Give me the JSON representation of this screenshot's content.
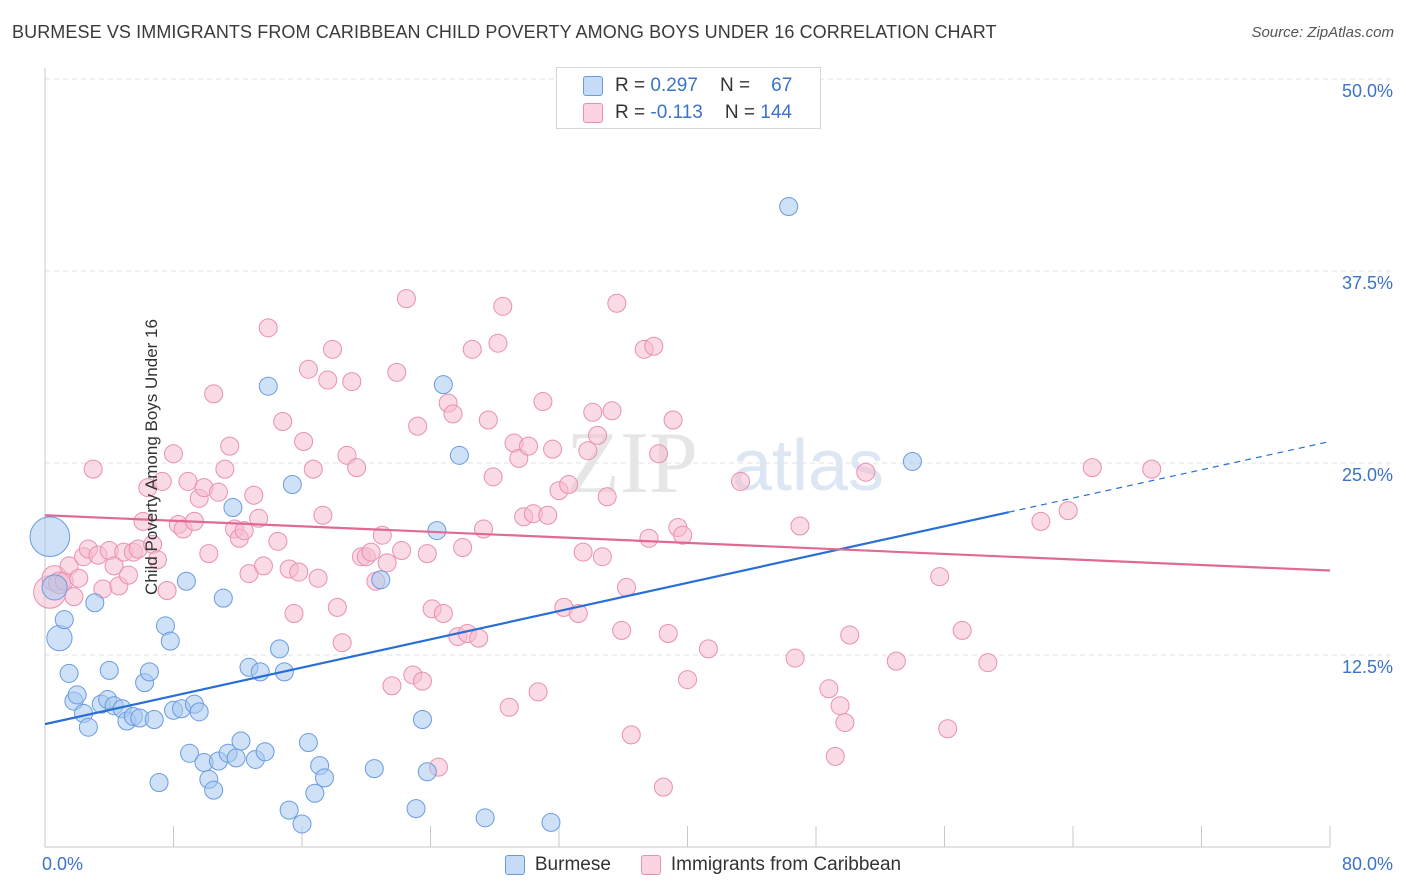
{
  "title": "BURMESE VS IMMIGRANTS FROM CARIBBEAN CHILD POVERTY AMONG BOYS UNDER 16 CORRELATION CHART",
  "source": "Source: ZipAtlas.com",
  "watermark": {
    "zip": "ZIP",
    "atlas": "atlas"
  },
  "legend": {
    "rows": [
      {
        "r_label": "R =",
        "r_value": "0.297",
        "n_label": "N =",
        "n_value": "67"
      },
      {
        "r_label": "R =",
        "r_value": "-0.113",
        "n_label": "N =",
        "n_value": "144"
      }
    ]
  },
  "colors": {
    "burmese_fill": "#a8c8f0",
    "burmese_stroke": "#6a9be0",
    "burmese_line": "#2a6fd4",
    "caribbean_fill": "#f6bcd0",
    "caribbean_stroke": "#e890b0",
    "caribbean_line": "#e06a96",
    "grid": "#e2e2e2",
    "tick_label": "#3b73c6"
  },
  "chart_data": {
    "type": "scatter",
    "title": "BURMESE VS IMMIGRANTS FROM CARIBBEAN CHILD POVERTY AMONG BOYS UNDER 16 CORRELATION CHART",
    "xlabel": "",
    "ylabel": "Child Poverty Among Boys Under 16",
    "xlim": [
      0,
      80
    ],
    "ylim": [
      0,
      50
    ],
    "x_tick_labels": [
      "0.0%",
      "80.0%"
    ],
    "y_ticks": [
      12.5,
      25.0,
      37.5,
      50.0
    ],
    "y_tick_labels": [
      "12.5%",
      "25.0%",
      "37.5%",
      "50.0%"
    ],
    "grid": "horizontal dashed",
    "legend_position": "bottom",
    "series": [
      {
        "name": "Burmese",
        "R": 0.297,
        "N": 67,
        "trend": {
          "x": [
            0,
            60
          ],
          "y": [
            8.0,
            21.8
          ],
          "dashed_to": [
            80,
            26.4
          ]
        },
        "points": [
          [
            0.3,
            20.2,
            2.2
          ],
          [
            0.6,
            16.9,
            1.4
          ],
          [
            0.9,
            13.6,
            1.4
          ],
          [
            1.2,
            14.8,
            1.0
          ],
          [
            1.5,
            11.3,
            1.0
          ],
          [
            1.8,
            9.5,
            1.0
          ],
          [
            2.0,
            9.9,
            1.0
          ],
          [
            2.4,
            8.7,
            1.0
          ],
          [
            2.7,
            7.8,
            1.0
          ],
          [
            3.1,
            15.9,
            1.0
          ],
          [
            3.5,
            9.3,
            1.0
          ],
          [
            3.9,
            9.6,
            1.0
          ],
          [
            4.0,
            11.5,
            1.0
          ],
          [
            4.3,
            9.2,
            1.0
          ],
          [
            4.8,
            9.0,
            1.0
          ],
          [
            5.1,
            8.2,
            1.0
          ],
          [
            5.5,
            8.5,
            1.0
          ],
          [
            5.9,
            8.4,
            1.0
          ],
          [
            6.2,
            10.7,
            1.0
          ],
          [
            6.5,
            11.4,
            1.0
          ],
          [
            6.8,
            8.3,
            1.0
          ],
          [
            7.1,
            4.2,
            1.0
          ],
          [
            7.5,
            14.4,
            1.0
          ],
          [
            7.8,
            13.4,
            1.0
          ],
          [
            8.0,
            8.9,
            1.0
          ],
          [
            8.5,
            9.0,
            1.0
          ],
          [
            8.8,
            17.3,
            1.0
          ],
          [
            9.0,
            6.1,
            1.0
          ],
          [
            9.3,
            9.3,
            1.0
          ],
          [
            9.6,
            8.8,
            1.0
          ],
          [
            9.9,
            5.5,
            1.0
          ],
          [
            10.2,
            4.4,
            1.0
          ],
          [
            10.5,
            3.7,
            1.0
          ],
          [
            10.8,
            5.6,
            1.0
          ],
          [
            11.1,
            16.2,
            1.0
          ],
          [
            11.4,
            6.1,
            1.0
          ],
          [
            11.7,
            22.1,
            1.0
          ],
          [
            11.9,
            5.8,
            1.0
          ],
          [
            12.2,
            6.9,
            1.0
          ],
          [
            12.7,
            11.7,
            1.0
          ],
          [
            13.1,
            5.7,
            1.0
          ],
          [
            13.4,
            11.4,
            1.0
          ],
          [
            13.7,
            6.2,
            1.0
          ],
          [
            13.9,
            30.0,
            1.0
          ],
          [
            14.6,
            12.9,
            1.0
          ],
          [
            14.9,
            11.4,
            1.0
          ],
          [
            15.2,
            2.4,
            1.0
          ],
          [
            15.4,
            23.6,
            1.0
          ],
          [
            16.0,
            1.5,
            1.0
          ],
          [
            16.4,
            6.8,
            1.0
          ],
          [
            16.8,
            3.5,
            1.0
          ],
          [
            17.1,
            5.3,
            1.0
          ],
          [
            17.4,
            4.5,
            1.0
          ],
          [
            20.5,
            5.1,
            1.0
          ],
          [
            20.9,
            17.4,
            1.0
          ],
          [
            23.1,
            2.5,
            1.0
          ],
          [
            23.5,
            8.3,
            1.0
          ],
          [
            23.8,
            4.9,
            1.0
          ],
          [
            24.4,
            20.6,
            1.0
          ],
          [
            24.8,
            30.1,
            1.0
          ],
          [
            25.8,
            25.5,
            1.0
          ],
          [
            27.4,
            1.9,
            1.0
          ],
          [
            31.5,
            1.6,
            1.0
          ],
          [
            46.3,
            41.7,
            1.0
          ],
          [
            54.0,
            25.1,
            1.0
          ]
        ]
      },
      {
        "name": "Immigrants from Caribbean",
        "R": -0.113,
        "N": 144,
        "trend": {
          "x": [
            0,
            80
          ],
          "y": [
            21.6,
            18.0
          ]
        },
        "points": [
          [
            0.3,
            16.6,
            1.8
          ],
          [
            0.6,
            17.5,
            1.4
          ],
          [
            0.9,
            17.2,
            1.2
          ],
          [
            1.2,
            17.3,
            1.0
          ],
          [
            1.5,
            18.3,
            1.0
          ],
          [
            1.8,
            16.3,
            1.0
          ],
          [
            2.1,
            17.5,
            1.0
          ],
          [
            2.4,
            18.9,
            1.0
          ],
          [
            2.7,
            19.4,
            1.0
          ],
          [
            3.0,
            24.6,
            1.0
          ],
          [
            3.3,
            19.0,
            1.0
          ],
          [
            3.6,
            16.8,
            1.0
          ],
          [
            4.0,
            19.3,
            1.0
          ],
          [
            4.3,
            18.3,
            1.0
          ],
          [
            4.6,
            17.0,
            1.0
          ],
          [
            4.9,
            19.2,
            1.0
          ],
          [
            5.2,
            17.7,
            1.0
          ],
          [
            5.5,
            19.2,
            1.0
          ],
          [
            5.8,
            19.4,
            1.0
          ],
          [
            6.1,
            21.2,
            1.0
          ],
          [
            6.4,
            23.4,
            1.0
          ],
          [
            6.7,
            19.7,
            1.0
          ],
          [
            7.0,
            18.7,
            1.0
          ],
          [
            7.3,
            23.8,
            1.0
          ],
          [
            7.6,
            16.7,
            1.0
          ],
          [
            8.0,
            25.6,
            1.0
          ],
          [
            8.3,
            21.0,
            1.0
          ],
          [
            8.6,
            20.7,
            1.0
          ],
          [
            8.9,
            23.8,
            1.0
          ],
          [
            9.3,
            21.2,
            1.0
          ],
          [
            9.6,
            22.7,
            1.0
          ],
          [
            9.9,
            23.4,
            1.0
          ],
          [
            10.2,
            19.1,
            1.0
          ],
          [
            10.5,
            29.5,
            1.0
          ],
          [
            10.8,
            23.1,
            1.0
          ],
          [
            11.2,
            24.6,
            1.0
          ],
          [
            11.5,
            26.1,
            1.0
          ],
          [
            11.8,
            20.7,
            1.0
          ],
          [
            12.1,
            20.1,
            1.0
          ],
          [
            12.4,
            20.6,
            1.0
          ],
          [
            12.7,
            17.8,
            1.0
          ],
          [
            13.0,
            22.9,
            1.0
          ],
          [
            13.3,
            21.4,
            1.0
          ],
          [
            13.6,
            18.3,
            1.0
          ],
          [
            13.9,
            33.8,
            1.0
          ],
          [
            14.5,
            19.9,
            1.0
          ],
          [
            14.8,
            27.7,
            1.0
          ],
          [
            15.2,
            18.1,
            1.0
          ],
          [
            15.5,
            15.2,
            1.0
          ],
          [
            15.8,
            17.9,
            1.0
          ],
          [
            16.1,
            26.4,
            1.0
          ],
          [
            16.4,
            31.1,
            1.0
          ],
          [
            16.7,
            24.6,
            1.0
          ],
          [
            17.0,
            17.5,
            1.0
          ],
          [
            17.3,
            21.6,
            1.0
          ],
          [
            17.6,
            30.4,
            1.0
          ],
          [
            17.9,
            32.4,
            1.0
          ],
          [
            18.2,
            15.6,
            1.0
          ],
          [
            18.5,
            13.3,
            1.0
          ],
          [
            18.8,
            25.5,
            1.0
          ],
          [
            19.1,
            30.3,
            1.0
          ],
          [
            19.4,
            24.7,
            1.0
          ],
          [
            19.7,
            18.9,
            1.0
          ],
          [
            20.0,
            18.9,
            1.0
          ],
          [
            20.3,
            19.2,
            1.0
          ],
          [
            20.6,
            17.3,
            1.0
          ],
          [
            21.0,
            20.3,
            1.0
          ],
          [
            21.3,
            18.5,
            1.0
          ],
          [
            21.6,
            10.5,
            1.0
          ],
          [
            21.9,
            30.9,
            1.0
          ],
          [
            22.2,
            19.3,
            1.0
          ],
          [
            22.5,
            35.7,
            1.0
          ],
          [
            22.9,
            11.2,
            1.0
          ],
          [
            23.2,
            27.4,
            1.0
          ],
          [
            23.5,
            10.8,
            1.0
          ],
          [
            23.8,
            19.1,
            1.0
          ],
          [
            24.1,
            15.5,
            1.0
          ],
          [
            24.5,
            5.2,
            1.0
          ],
          [
            24.8,
            15.2,
            1.0
          ],
          [
            25.1,
            28.9,
            1.0
          ],
          [
            25.4,
            28.2,
            1.0
          ],
          [
            25.7,
            13.7,
            1.0
          ],
          [
            26.0,
            19.5,
            1.0
          ],
          [
            26.3,
            13.9,
            1.0
          ],
          [
            26.6,
            32.4,
            1.0
          ],
          [
            27.0,
            13.6,
            1.0
          ],
          [
            27.3,
            20.7,
            1.0
          ],
          [
            27.6,
            27.8,
            1.0
          ],
          [
            27.9,
            24.1,
            1.0
          ],
          [
            28.2,
            32.8,
            1.0
          ],
          [
            28.5,
            35.2,
            1.0
          ],
          [
            28.9,
            9.1,
            1.0
          ],
          [
            29.2,
            26.3,
            1.0
          ],
          [
            29.5,
            25.3,
            1.0
          ],
          [
            29.8,
            21.5,
            1.0
          ],
          [
            30.1,
            26.1,
            1.0
          ],
          [
            30.4,
            21.7,
            1.0
          ],
          [
            30.7,
            10.1,
            1.0
          ],
          [
            31.0,
            29.0,
            1.0
          ],
          [
            31.3,
            21.6,
            1.0
          ],
          [
            31.6,
            25.9,
            1.0
          ],
          [
            32.0,
            23.2,
            1.0
          ],
          [
            32.3,
            15.6,
            1.0
          ],
          [
            32.6,
            23.6,
            1.0
          ],
          [
            33.2,
            15.2,
            1.0
          ],
          [
            33.5,
            19.2,
            1.0
          ],
          [
            33.8,
            25.8,
            1.0
          ],
          [
            34.1,
            28.3,
            1.0
          ],
          [
            34.4,
            26.8,
            1.0
          ],
          [
            34.7,
            18.9,
            1.0
          ],
          [
            35.0,
            22.8,
            1.0
          ],
          [
            35.3,
            28.4,
            1.0
          ],
          [
            35.6,
            35.4,
            1.0
          ],
          [
            35.9,
            14.1,
            1.0
          ],
          [
            36.2,
            16.9,
            1.0
          ],
          [
            36.5,
            7.3,
            1.0
          ],
          [
            37.3,
            32.4,
            1.0
          ],
          [
            37.6,
            20.1,
            1.0
          ],
          [
            37.9,
            32.6,
            1.0
          ],
          [
            38.2,
            25.6,
            1.0
          ],
          [
            38.5,
            3.9,
            1.0
          ],
          [
            38.8,
            13.9,
            1.0
          ],
          [
            39.1,
            27.8,
            1.0
          ],
          [
            39.4,
            20.8,
            1.0
          ],
          [
            39.7,
            20.3,
            1.0
          ],
          [
            40.0,
            10.9,
            1.0
          ],
          [
            41.3,
            12.9,
            1.0
          ],
          [
            43.3,
            23.8,
            1.0
          ],
          [
            46.7,
            12.3,
            1.0
          ],
          [
            47.0,
            20.9,
            1.0
          ],
          [
            48.8,
            10.3,
            1.0
          ],
          [
            49.2,
            5.9,
            1.0
          ],
          [
            49.5,
            9.2,
            1.0
          ],
          [
            49.8,
            8.1,
            1.0
          ],
          [
            50.1,
            13.8,
            1.0
          ],
          [
            51.1,
            24.4,
            1.0
          ],
          [
            53.0,
            12.1,
            1.0
          ],
          [
            55.7,
            17.6,
            1.0
          ],
          [
            56.2,
            7.7,
            1.0
          ],
          [
            57.1,
            14.1,
            1.0
          ],
          [
            58.7,
            12.0,
            1.0
          ],
          [
            62.0,
            21.2,
            1.0
          ],
          [
            63.7,
            21.9,
            1.0
          ],
          [
            65.2,
            24.7,
            1.0
          ],
          [
            68.9,
            24.6,
            1.0
          ]
        ]
      }
    ]
  }
}
